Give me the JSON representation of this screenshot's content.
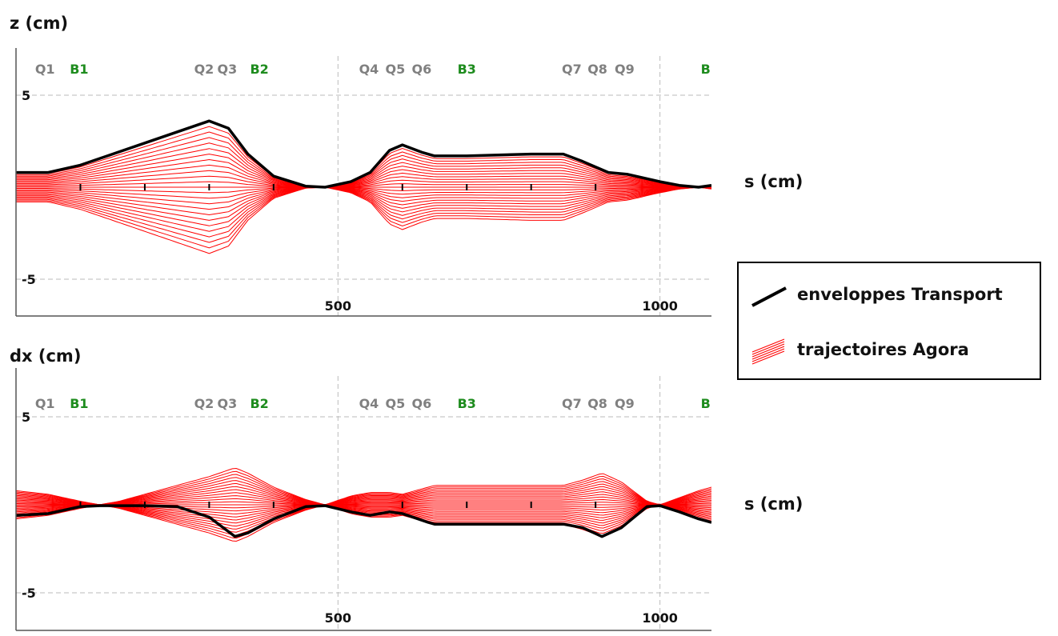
{
  "colors": {
    "transport": "#000000",
    "agora": "#ff0000",
    "quad_label": "#808080",
    "dipole_label": "#1e8c1e",
    "grid": "#bbbbbb"
  },
  "legend": {
    "items": [
      {
        "label": "enveloppes Transport",
        "color": "#000000"
      },
      {
        "label": "trajectoires Agora",
        "color": "#ff0000"
      }
    ]
  },
  "chart_data": [
    {
      "type": "line",
      "ylabel": "z (cm)",
      "xlabel": "s (cm)",
      "xlim": [
        0,
        1080
      ],
      "ylim": [
        -6,
        6.5
      ],
      "xticks": [
        500,
        1000
      ],
      "yticks": [
        5,
        -5
      ],
      "grid": true,
      "elements": [
        {
          "label": "Q1",
          "kind": "quadrupole"
        },
        {
          "label": "B1",
          "kind": "dipole"
        },
        {
          "label": "Q2",
          "kind": "quadrupole"
        },
        {
          "label": "Q3",
          "kind": "quadrupole"
        },
        {
          "label": "B2",
          "kind": "dipole"
        },
        {
          "label": "Q4",
          "kind": "quadrupole"
        },
        {
          "label": "Q5",
          "kind": "quadrupole"
        },
        {
          "label": "Q6",
          "kind": "quadrupole"
        },
        {
          "label": "B3",
          "kind": "dipole"
        },
        {
          "label": "Q7",
          "kind": "quadrupole"
        },
        {
          "label": "Q8",
          "kind": "quadrupole"
        },
        {
          "label": "Q9",
          "kind": "quadrupole"
        },
        {
          "label": "B",
          "kind": "dipole"
        }
      ],
      "series": [
        {
          "name": "enveloppes Transport",
          "x": [
            0,
            50,
            100,
            200,
            300,
            330,
            360,
            400,
            450,
            480,
            520,
            550,
            580,
            600,
            630,
            650,
            700,
            800,
            850,
            880,
            920,
            950,
            1000,
            1030,
            1060,
            1080
          ],
          "y": [
            0.8,
            0.8,
            1.2,
            2.4,
            3.6,
            3.2,
            1.8,
            0.6,
            0.05,
            0.0,
            0.3,
            0.8,
            2.0,
            2.3,
            1.9,
            1.7,
            1.7,
            1.8,
            1.8,
            1.4,
            0.8,
            0.7,
            0.3,
            0.1,
            0.0,
            0.1
          ]
        },
        {
          "name": "trajectoires Agora",
          "x": [
            0,
            50,
            100,
            200,
            300,
            330,
            360,
            400,
            450,
            480,
            520,
            550,
            580,
            600,
            630,
            650,
            700,
            800,
            850,
            880,
            920,
            950,
            1000,
            1030,
            1060,
            1080
          ],
          "y": [
            0.8,
            0.8,
            1.2,
            2.4,
            3.6,
            3.2,
            1.8,
            0.6,
            0.05,
            0.0,
            0.3,
            0.8,
            2.0,
            2.3,
            1.9,
            1.7,
            1.7,
            1.8,
            1.8,
            1.4,
            0.8,
            0.7,
            0.3,
            0.1,
            0.0,
            0.1
          ]
        }
      ]
    },
    {
      "type": "line",
      "ylabel": "dx (cm)",
      "xlabel": "s (cm)",
      "xlim": [
        0,
        1080
      ],
      "ylim": [
        -6,
        6.5
      ],
      "xticks": [
        500,
        1000
      ],
      "yticks": [
        5,
        -5
      ],
      "grid": true,
      "elements": [
        {
          "label": "Q1",
          "kind": "quadrupole"
        },
        {
          "label": "B1",
          "kind": "dipole"
        },
        {
          "label": "Q2",
          "kind": "quadrupole"
        },
        {
          "label": "Q3",
          "kind": "quadrupole"
        },
        {
          "label": "B2",
          "kind": "dipole"
        },
        {
          "label": "Q4",
          "kind": "quadrupole"
        },
        {
          "label": "Q5",
          "kind": "quadrupole"
        },
        {
          "label": "Q6",
          "kind": "quadrupole"
        },
        {
          "label": "B3",
          "kind": "dipole"
        },
        {
          "label": "Q7",
          "kind": "quadrupole"
        },
        {
          "label": "Q8",
          "kind": "quadrupole"
        },
        {
          "label": "Q9",
          "kind": "quadrupole"
        },
        {
          "label": "B",
          "kind": "dipole"
        }
      ],
      "series": [
        {
          "name": "enveloppes Transport",
          "x": [
            0,
            50,
            100,
            130,
            160,
            200,
            250,
            300,
            340,
            360,
            400,
            450,
            480,
            520,
            550,
            580,
            600,
            640,
            650,
            700,
            800,
            850,
            880,
            910,
            940,
            980,
            1000,
            1030,
            1060,
            1080
          ],
          "y": [
            -0.6,
            -0.5,
            -0.1,
            -0.05,
            -0.05,
            -0.05,
            -0.1,
            -0.7,
            -1.8,
            -1.6,
            -0.8,
            -0.1,
            -0.05,
            -0.4,
            -0.6,
            -0.4,
            -0.5,
            -1.0,
            -1.1,
            -1.1,
            -1.1,
            -1.1,
            -1.3,
            -1.8,
            -1.3,
            -0.1,
            -0.05,
            -0.4,
            -0.8,
            -1.0
          ]
        },
        {
          "name": "trajectoires Agora",
          "x": [
            0,
            50,
            100,
            130,
            160,
            200,
            250,
            300,
            340,
            360,
            400,
            450,
            480,
            520,
            550,
            580,
            600,
            640,
            650,
            700,
            800,
            850,
            880,
            910,
            940,
            980,
            1000,
            1030,
            1060,
            1080
          ],
          "y": [
            0.8,
            0.6,
            0.2,
            0.0,
            0.2,
            0.6,
            1.1,
            1.6,
            2.1,
            1.8,
            1.0,
            0.3,
            0.0,
            0.5,
            0.7,
            0.7,
            0.6,
            1.0,
            1.1,
            1.1,
            1.1,
            1.1,
            1.4,
            1.8,
            1.3,
            0.2,
            0.0,
            0.4,
            0.8,
            1.0
          ]
        }
      ]
    }
  ]
}
